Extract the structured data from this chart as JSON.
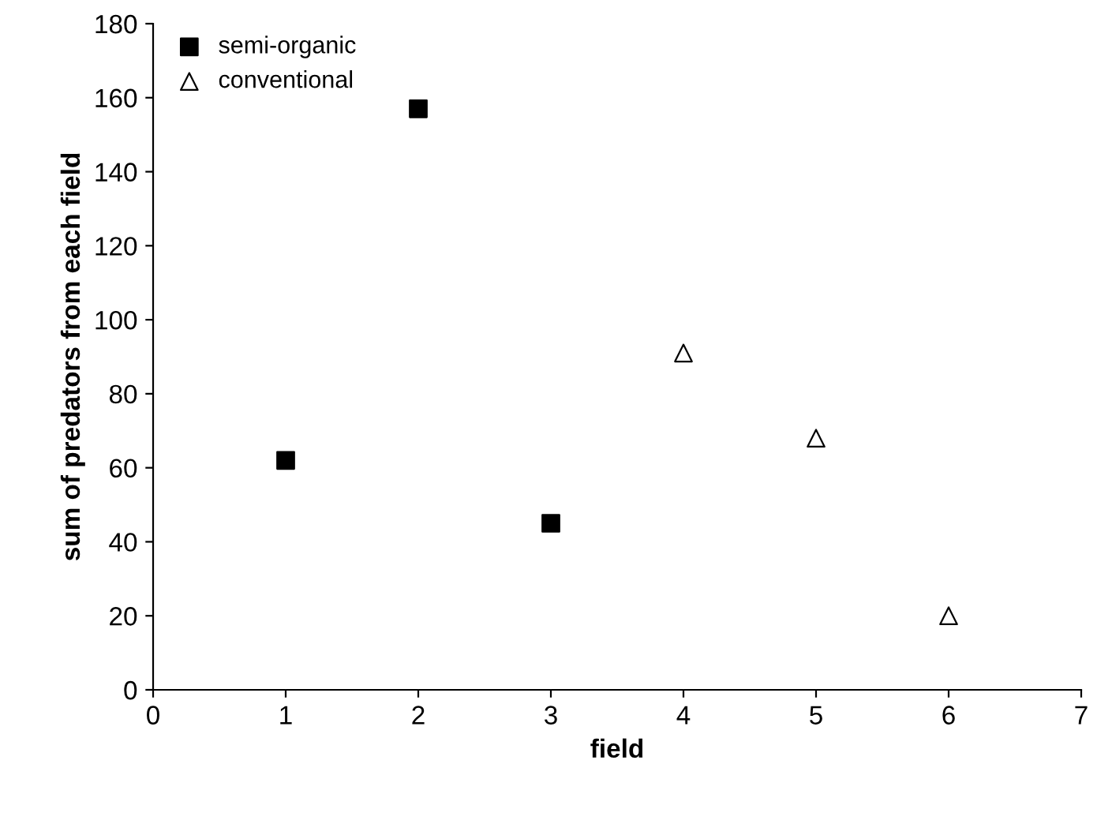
{
  "chart_data": {
    "type": "scatter",
    "xlabel": "field",
    "ylabel": "sum of predators from each field",
    "series": [
      {
        "name": "semi-organic",
        "color": "#000000",
        "marker": "square",
        "x": [
          1,
          2,
          3
        ],
        "values": [
          62,
          157,
          45
        ]
      },
      {
        "name": "conventional",
        "color": "#ffffff",
        "marker": "triangle",
        "x": [
          4,
          5,
          6
        ],
        "values": [
          91,
          68,
          20
        ]
      }
    ],
    "xlim": [
      0,
      7
    ],
    "xticks": [
      0,
      1,
      2,
      3,
      4,
      5,
      6,
      7
    ],
    "ylim": [
      0,
      180
    ],
    "yticks": [
      0,
      20,
      40,
      60,
      80,
      100,
      120,
      140,
      160,
      180
    ],
    "grid": false,
    "legend": "top left"
  }
}
